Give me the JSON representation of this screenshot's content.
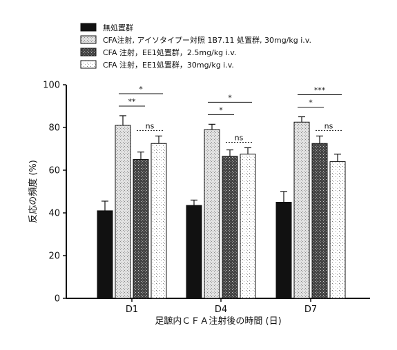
{
  "chart_data": {
    "type": "bar",
    "categories": [
      "D1",
      "D4",
      "D7"
    ],
    "ylabel": "反応の頻度 (%)",
    "xlabel": "足蹠内ＣＦＡ注射後の時間 (日)",
    "ylim": [
      0,
      100
    ],
    "yticks": [
      0,
      20,
      40,
      60,
      80,
      100
    ],
    "legend_position": "top-left",
    "series": [
      {
        "name": "無処置群",
        "values": [
          41,
          43.5,
          45
        ],
        "errors": [
          4.5,
          2.5,
          5
        ],
        "fill": "solid-black"
      },
      {
        "name": "CFA注射, アイソタイプー対照 1B7.11 処置群, 30mg/kg i.v.",
        "values": [
          81,
          79,
          82.5
        ],
        "errors": [
          4.5,
          2.5,
          2.5
        ],
        "fill": "light-stipple"
      },
      {
        "name": "CFA 注射，EE1処置群，2.5mg/kg i.v.",
        "values": [
          65,
          66.5,
          72.5
        ],
        "errors": [
          3.5,
          3,
          3.5
        ],
        "fill": "dark-stipple"
      },
      {
        "name": "CFA 注射，EE1処置群，30mg/kg i.v.",
        "values": [
          72.5,
          67.5,
          64
        ],
        "errors": [
          3.5,
          3,
          3.5
        ],
        "fill": "sparse-stipple"
      }
    ],
    "annotations": [
      {
        "group": "D1",
        "from_series": 1,
        "to_series": 3,
        "text": "*",
        "style": "solid"
      },
      {
        "group": "D1",
        "from_series": 1,
        "to_series": 2,
        "text": "**",
        "style": "solid"
      },
      {
        "group": "D1",
        "from_series": 2,
        "to_series": 3,
        "text": "ns",
        "style": "dotted"
      },
      {
        "group": "D4",
        "from_series": 1,
        "to_series": 3,
        "text": "*",
        "style": "solid"
      },
      {
        "group": "D4",
        "from_series": 1,
        "to_series": 2,
        "text": "*",
        "style": "solid"
      },
      {
        "group": "D4",
        "from_series": 2,
        "to_series": 3,
        "text": "ns",
        "style": "dotted"
      },
      {
        "group": "D7",
        "from_series": 1,
        "to_series": 3,
        "text": "***",
        "style": "solid"
      },
      {
        "group": "D7",
        "from_series": 1,
        "to_series": 2,
        "text": "*",
        "style": "solid"
      },
      {
        "group": "D7",
        "from_series": 2,
        "to_series": 3,
        "text": "ns",
        "style": "dotted"
      }
    ]
  }
}
